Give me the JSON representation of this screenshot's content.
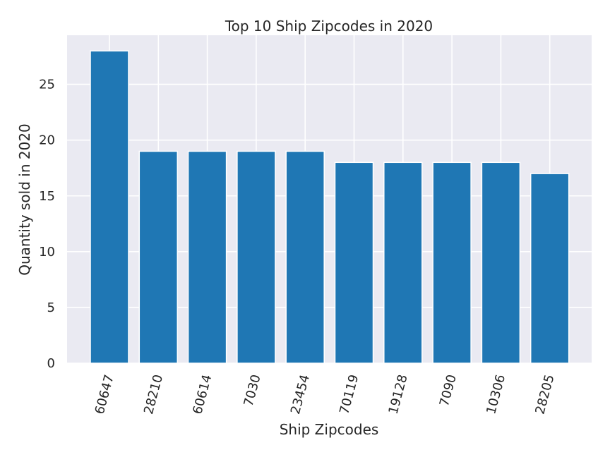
{
  "chart_data": {
    "type": "bar",
    "title": "Top 10 Ship Zipcodes in 2020",
    "xlabel": "Ship Zipcodes",
    "ylabel": "Quantity sold in 2020",
    "categories": [
      "60647",
      "28210",
      "60614",
      "7030",
      "23454",
      "70119",
      "19128",
      "7090",
      "10306",
      "28205"
    ],
    "values": [
      28,
      19,
      19,
      19,
      19,
      18,
      18,
      18,
      18,
      17
    ],
    "ylim": [
      0,
      29.4
    ],
    "yticks": [
      0,
      5,
      10,
      15,
      20,
      25
    ],
    "grid": true,
    "colors": {
      "bar": "#1f77b4",
      "plot_background": "#eaeaf2",
      "grid": "#ffffff"
    }
  }
}
